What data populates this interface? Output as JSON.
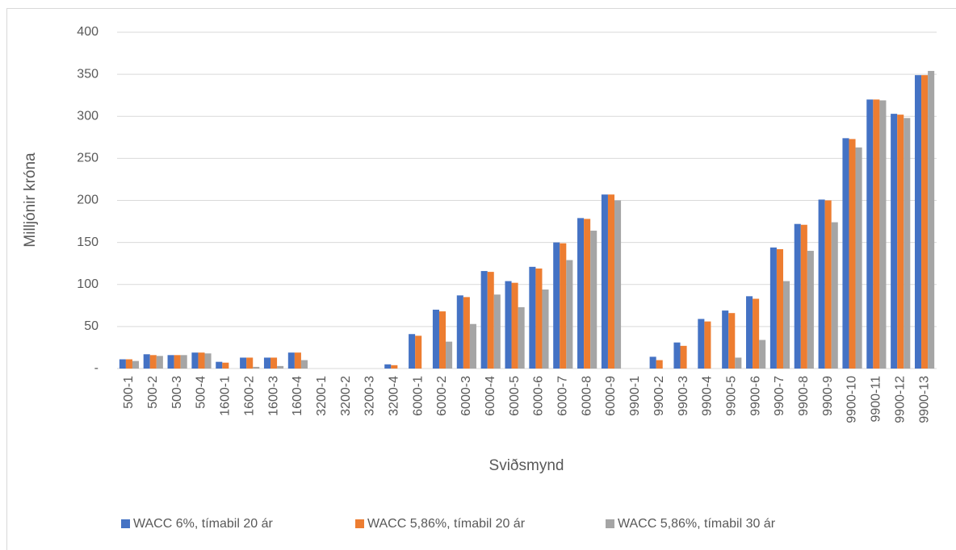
{
  "chart_data": {
    "type": "bar",
    "categories": [
      "500-1",
      "500-2",
      "500-3",
      "500-4",
      "1600-1",
      "1600-2",
      "1600-3",
      "1600-4",
      "3200-1",
      "3200-2",
      "3200-3",
      "3200-4",
      "6000-1",
      "6000-2",
      "6000-3",
      "6000-4",
      "6000-5",
      "6000-6",
      "6000-7",
      "6000-8",
      "6000-9",
      "9900-1",
      "9900-2",
      "9900-3",
      "9900-4",
      "9900-5",
      "9900-6",
      "9900-7",
      "9900-8",
      "9900-9",
      "9900-10",
      "9900-11",
      "9900-12",
      "9900-13"
    ],
    "series": [
      {
        "name": "WACC 6%, tímabil 20 ár",
        "color": "#4472c4",
        "values": [
          11,
          17,
          16,
          19,
          8,
          13,
          13,
          19,
          0,
          0,
          0,
          5,
          41,
          70,
          87,
          116,
          104,
          121,
          150,
          179,
          207,
          0,
          14,
          31,
          59,
          69,
          86,
          144,
          172,
          201,
          274,
          320,
          303,
          349
        ]
      },
      {
        "name": "WACC 5,86%, tímabil 20 ár",
        "color": "#ed7d31",
        "values": [
          11,
          16,
          16,
          19,
          7,
          13,
          13,
          19,
          0,
          0,
          0,
          4,
          39,
          68,
          85,
          115,
          102,
          119,
          149,
          178,
          207,
          0,
          10,
          27,
          56,
          66,
          83,
          142,
          171,
          200,
          273,
          320,
          302,
          349
        ]
      },
      {
        "name": "WACC 5,86%, tímabil 30 ár",
        "color": "#a5a5a5",
        "values": [
          9,
          15,
          16,
          18,
          0,
          2,
          3,
          10,
          0,
          0,
          0,
          0,
          0,
          32,
          53,
          88,
          73,
          94,
          129,
          164,
          200,
          0,
          0,
          0,
          0,
          13,
          34,
          104,
          140,
          174,
          263,
          319,
          298,
          354
        ]
      }
    ],
    "x_label": "Sviðsmynd",
    "y_label": "Milljónir króna",
    "ylim": [
      0,
      400
    ],
    "yticks": [
      {
        "value": 0,
        "label": "-"
      },
      50,
      100,
      150,
      200,
      250,
      300,
      350,
      400
    ],
    "grid": true,
    "legend": "bottom"
  }
}
